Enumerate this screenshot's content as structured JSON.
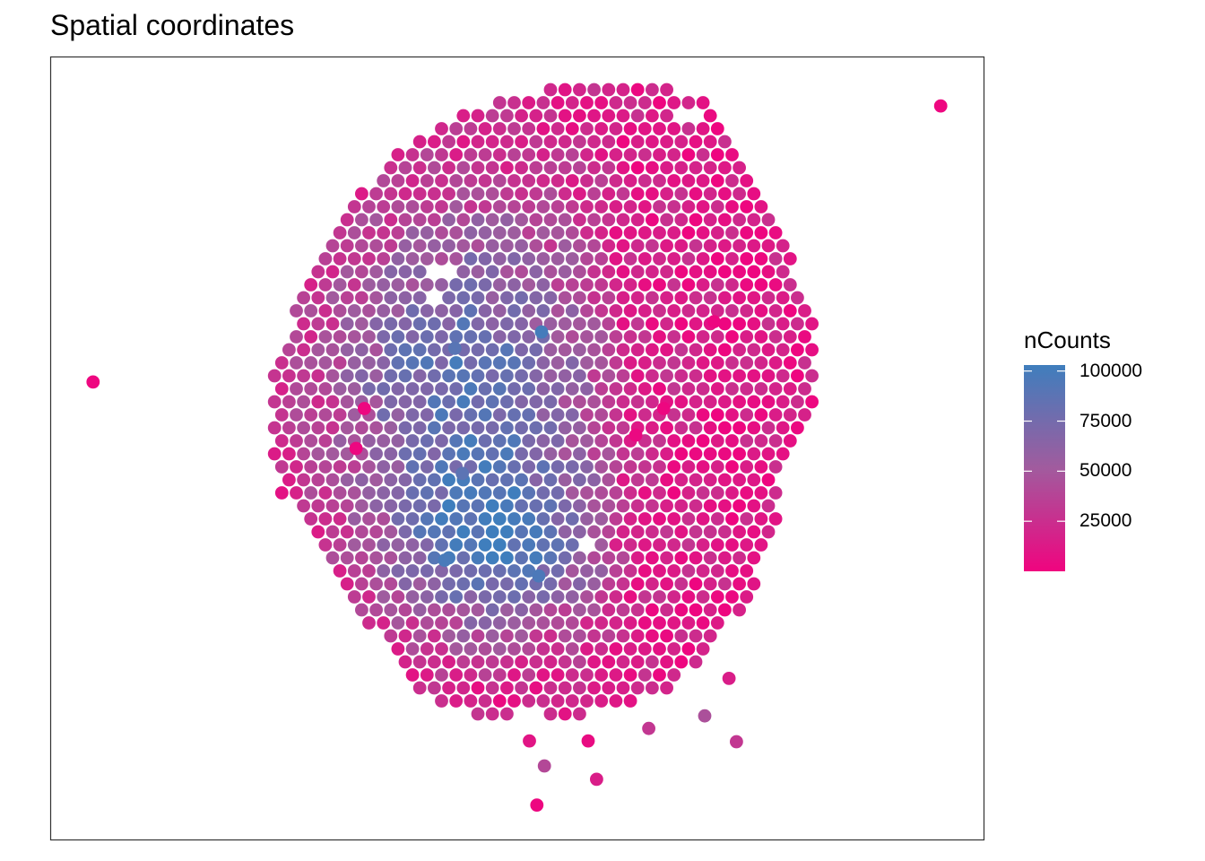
{
  "title": "Spatial coordinates",
  "colors": {
    "low": "#F0047F",
    "high": "#3F7EBD",
    "panel_border": "#333333"
  },
  "legend": {
    "title": "nCounts",
    "ticks": [
      {
        "label": "100000",
        "value": 100000
      },
      {
        "label": "75000",
        "value": 75000
      },
      {
        "label": "50000",
        "value": 50000
      },
      {
        "label": "25000",
        "value": 25000
      }
    ],
    "range": [
      0,
      103000
    ]
  },
  "chart_data": {
    "type": "scatter",
    "title": "Spatial coordinates",
    "xlabel": "",
    "ylabel": "",
    "axes_shown": false,
    "grid": false,
    "legend_position": "right",
    "color_variable": "nCounts",
    "color_range": [
      0,
      103000
    ],
    "xlim": [
      0,
      1
    ],
    "ylim": [
      0,
      1
    ],
    "note_units": "spot coordinates unlabeled; normalized 0-1 within panel",
    "tissue_outline": {
      "rows": 54,
      "hex_grid": true,
      "outlier_spots": [
        {
          "x": 0.045,
          "y": 0.585,
          "nCounts": 1500
        },
        {
          "x": 0.954,
          "y": 0.938,
          "nCounts": 1500
        },
        {
          "x": 0.521,
          "y": 0.044,
          "nCounts": 2000
        },
        {
          "x": 0.585,
          "y": 0.077,
          "nCounts": 15000
        },
        {
          "x": 0.529,
          "y": 0.094,
          "nCounts": 40000
        },
        {
          "x": 0.513,
          "y": 0.126,
          "nCounts": 10000
        },
        {
          "x": 0.576,
          "y": 0.126,
          "nCounts": 5000
        },
        {
          "x": 0.735,
          "y": 0.125,
          "nCounts": 30000
        },
        {
          "x": 0.641,
          "y": 0.142,
          "nCounts": 30000
        },
        {
          "x": 0.701,
          "y": 0.158,
          "nCounts": 45000
        },
        {
          "x": 0.727,
          "y": 0.206,
          "nCounts": 15000
        }
      ],
      "hot_spots": [
        {
          "x": 0.526,
          "y": 0.649,
          "nCounts": 100000
        },
        {
          "x": 0.422,
          "y": 0.357,
          "nCounts": 98000
        },
        {
          "x": 0.523,
          "y": 0.337,
          "nCounts": 96000
        },
        {
          "x": 0.433,
          "y": 0.628,
          "nCounts": 90000
        },
        {
          "x": 0.441,
          "y": 0.468,
          "nCounts": 88000
        }
      ],
      "cold_spots": [
        {
          "x": 0.336,
          "y": 0.551,
          "nCounts": 2000
        },
        {
          "x": 0.657,
          "y": 0.551,
          "nCounts": 2000
        },
        {
          "x": 0.627,
          "y": 0.517,
          "nCounts": 3000
        },
        {
          "x": 0.711,
          "y": 0.662,
          "nCounts": 2000
        },
        {
          "x": 0.327,
          "y": 0.5,
          "nCounts": 2000
        }
      ]
    }
  }
}
